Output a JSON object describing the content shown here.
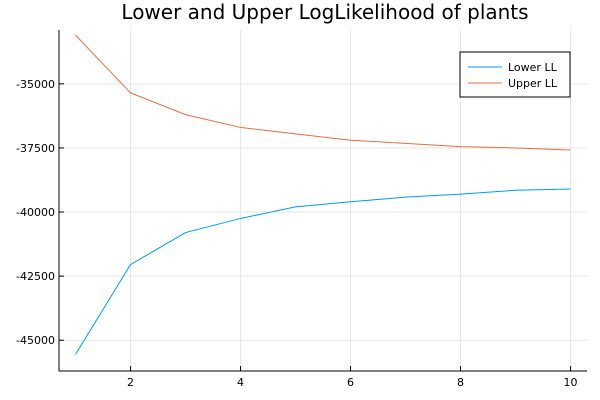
{
  "chart_data": {
    "type": "line",
    "title": "Lower and Upper LogLikelihood of plants",
    "xlabel": "",
    "ylabel": "",
    "xlim": [
      0.7,
      10.3
    ],
    "ylim": [
      -46200,
      -32900
    ],
    "xticks": [
      2,
      4,
      6,
      8,
      10
    ],
    "yticks": [
      -35000,
      -37500,
      -40000,
      -42500,
      -45000
    ],
    "grid": true,
    "legend_position": "top-right",
    "x": [
      1,
      2,
      3,
      4,
      5,
      6,
      7,
      8,
      9,
      10
    ],
    "series": [
      {
        "name": "Lower LL",
        "color": "#009AFA",
        "values": [
          -45550,
          -42050,
          -40800,
          -40250,
          -39800,
          -39600,
          -39420,
          -39300,
          -39150,
          -39100
        ]
      },
      {
        "name": "Upper LL",
        "color": "#E36F47",
        "values": [
          -33100,
          -35350,
          -36200,
          -36700,
          -36950,
          -37200,
          -37320,
          -37450,
          -37500,
          -37580
        ]
      }
    ]
  }
}
